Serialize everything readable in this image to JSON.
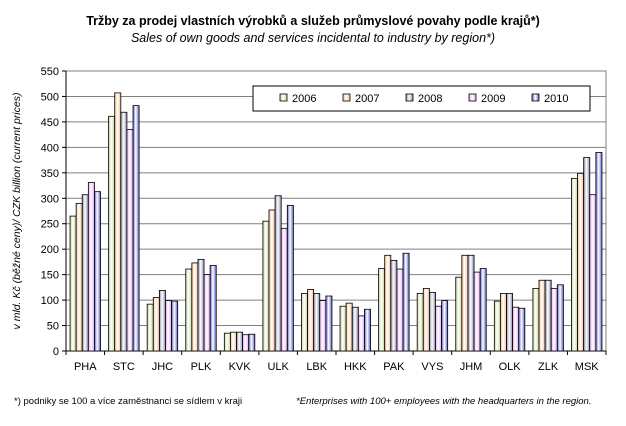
{
  "title": "Tržby za prodej vlastních výrobků a služeb průmyslové povahy podle krajů*)",
  "subtitle": "Sales of own goods and services incidental to industry by region*)",
  "footnote_cz": "*) podniky se 100 a více zaměstnanci se sídlem v kraji",
  "footnote_en": "*Enterprises with 100+ employees with the headquarters in the region.",
  "chart_data": {
    "type": "bar",
    "title": "Tržby za prodej vlastních výrobků a služeb průmyslové povahy podle krajů*)",
    "ylabel": "v mld. Kč (běžné ceny)/ CZK billion (current prices)",
    "xlabel": "",
    "ylim": [
      0,
      550
    ],
    "yticks": [
      0,
      50,
      100,
      150,
      200,
      250,
      300,
      350,
      400,
      450,
      500,
      550
    ],
    "grid": true,
    "legend_position": "top-right",
    "categories": [
      "PHA",
      "STC",
      "JHC",
      "PLK",
      "KVK",
      "ULK",
      "LBK",
      "HKK",
      "PAK",
      "VYS",
      "JHM",
      "OLK",
      "ZLK",
      "MSK"
    ],
    "series": [
      {
        "name": "2006",
        "color": "#c4d79b",
        "values": [
          265,
          461,
          92,
          161,
          35,
          255,
          113,
          88,
          162,
          113,
          145,
          98,
          123,
          339
        ]
      },
      {
        "name": "2007",
        "color": "#fabf8f",
        "values": [
          290,
          507,
          105,
          173,
          37,
          277,
          121,
          94,
          188,
          123,
          188,
          113,
          139,
          349
        ]
      },
      {
        "name": "2008",
        "color": "#8b8fae",
        "values": [
          307,
          469,
          119,
          180,
          37,
          305,
          113,
          86,
          178,
          115,
          188,
          113,
          139,
          380
        ]
      },
      {
        "name": "2009",
        "color": "#e6a6f2",
        "values": [
          331,
          435,
          99,
          150,
          32,
          241,
          99,
          69,
          161,
          88,
          155,
          86,
          123,
          307
        ]
      },
      {
        "name": "2010",
        "color": "#5b63c8",
        "values": [
          313,
          482,
          98,
          168,
          33,
          286,
          108,
          82,
          192,
          99,
          162,
          84,
          130,
          390
        ]
      }
    ]
  }
}
